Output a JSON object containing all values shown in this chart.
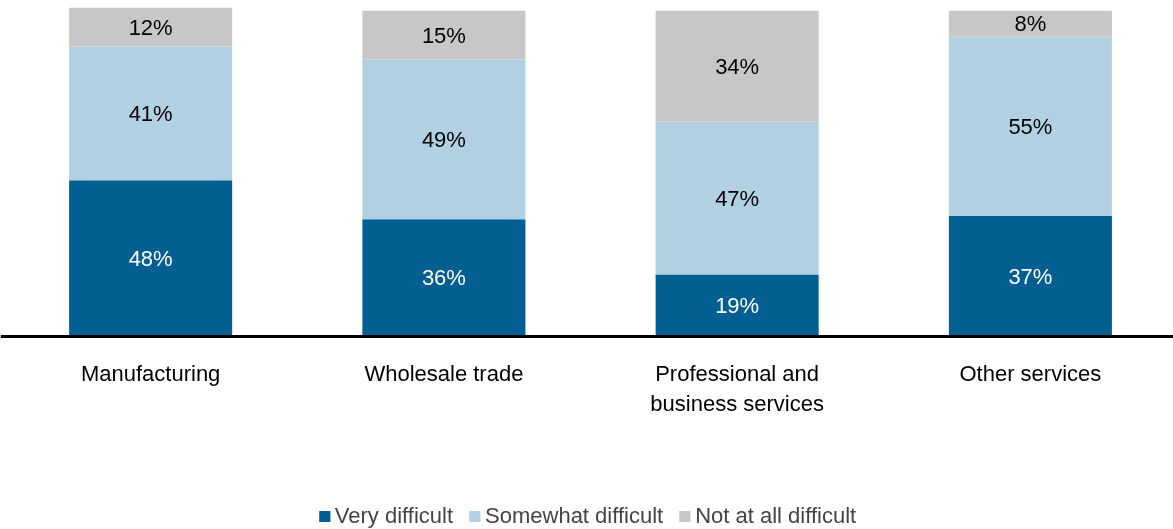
{
  "chart_data": {
    "type": "bar",
    "stacked": true,
    "categories": [
      "Manufacturing",
      "Wholesale trade",
      "Professional and business services",
      "Other services"
    ],
    "series": [
      {
        "name": "Very difficult",
        "color": "#035e92",
        "values": [
          48,
          36,
          19,
          37
        ],
        "value_labels": [
          "48%",
          "36%",
          "19%",
          "37%"
        ]
      },
      {
        "name": "Somewhat difficult",
        "color": "#b1d1e3",
        "values": [
          41,
          49,
          47,
          55
        ],
        "value_labels": [
          "41%",
          "49%",
          "47%",
          "55%"
        ]
      },
      {
        "name": "Not at all difficult",
        "color": "#c9c7c5",
        "values": [
          12,
          15,
          34,
          8
        ],
        "value_labels": [
          "12%",
          "15%",
          "34%",
          "8%"
        ]
      }
    ],
    "legend": "bottom",
    "tick_labels": "x"
  }
}
